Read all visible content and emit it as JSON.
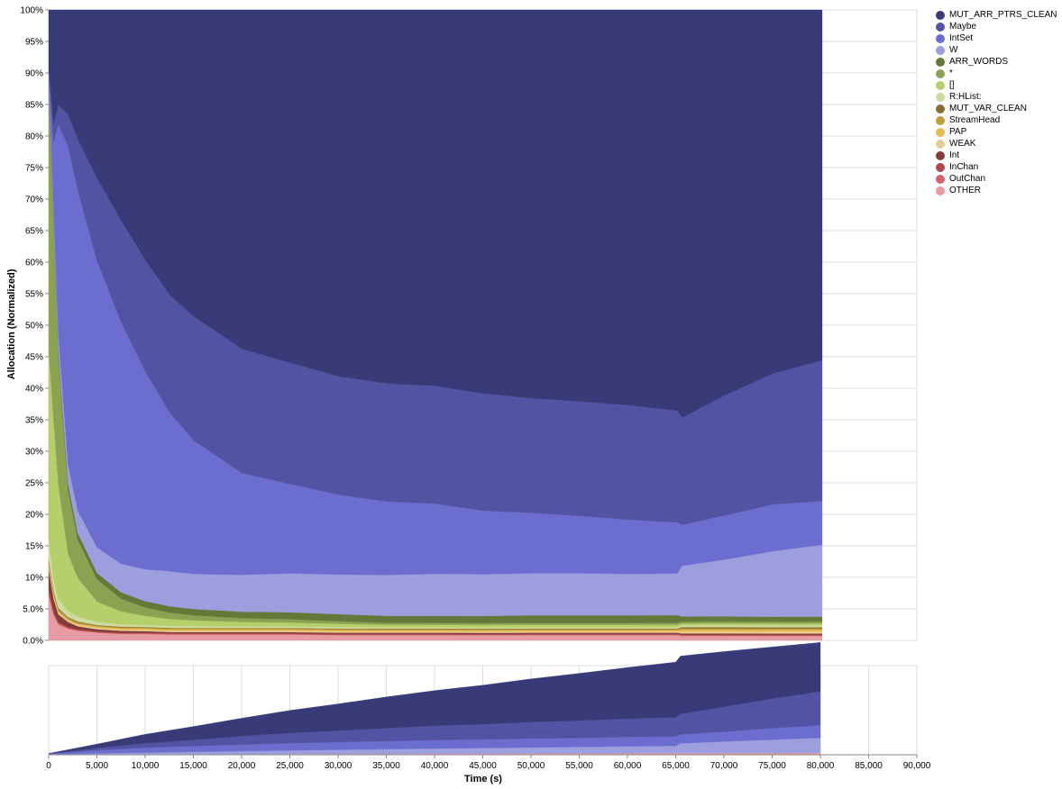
{
  "chart_data": [
    {
      "type": "area",
      "stacked": "normalized",
      "ylabel": "Allocation (Normalized)",
      "ylim": [
        0,
        100
      ],
      "y_ticks": [
        "0.0%",
        "5.0%",
        "10%",
        "15%",
        "20%",
        "25%",
        "30%",
        "35%",
        "40%",
        "45%",
        "50%",
        "55%",
        "60%",
        "65%",
        "70%",
        "75%",
        "80%",
        "85%",
        "90%",
        "95%",
        "100%"
      ],
      "grid": true,
      "legend_position": "right",
      "x": [
        0,
        500,
        1000,
        2000,
        3000,
        5000,
        7500,
        10000,
        12500,
        15000,
        20000,
        25000,
        30000,
        35000,
        40000,
        45000,
        50000,
        55000,
        60000,
        65000,
        65500,
        70000,
        75000,
        80000
      ],
      "boundaries_note_units": "percent",
      "series": [
        {
          "name": "OTHER",
          "color": "#e79ba2",
          "values": [
            7,
            4,
            2.5,
            1.8,
            1.5,
            1.2,
            1.0,
            1.0,
            0.9,
            0.9,
            0.9,
            0.9,
            0.8,
            0.8,
            0.8,
            0.8,
            0.8,
            0.8,
            0.8,
            0.8,
            0.7,
            0.7,
            0.7,
            0.7
          ]
        },
        {
          "name": "OutChan",
          "color": "#d6616b",
          "values": [
            0.6,
            0.3,
            0.2,
            0.15,
            0.1,
            0.1,
            0.1,
            0.1,
            0.1,
            0.1,
            0.1,
            0.1,
            0.1,
            0.1,
            0.1,
            0.1,
            0.1,
            0.1,
            0.1,
            0.1,
            0.1,
            0.1,
            0.1,
            0.1
          ]
        },
        {
          "name": "InChan",
          "color": "#ad494a",
          "values": [
            0.6,
            0.3,
            0.2,
            0.15,
            0.1,
            0.1,
            0.1,
            0.1,
            0.1,
            0.1,
            0.1,
            0.1,
            0.1,
            0.1,
            0.1,
            0.1,
            0.1,
            0.1,
            0.1,
            0.1,
            0.1,
            0.1,
            0.1,
            0.1
          ]
        },
        {
          "name": "Int",
          "color": "#843c39",
          "values": [
            3,
            2,
            1.2,
            0.8,
            0.5,
            0.35,
            0.3,
            0.25,
            0.22,
            0.2,
            0.2,
            0.2,
            0.2,
            0.2,
            0.2,
            0.2,
            0.2,
            0.2,
            0.2,
            0.2,
            0.2,
            0.2,
            0.2,
            0.2
          ]
        },
        {
          "name": "WEAK",
          "color": "#e7cb94",
          "values": [
            0.4,
            0.3,
            0.25,
            0.2,
            0.2,
            0.2,
            0.2,
            0.2,
            0.2,
            0.2,
            0.2,
            0.2,
            0.2,
            0.2,
            0.2,
            0.2,
            0.2,
            0.2,
            0.2,
            0.2,
            0.3,
            0.3,
            0.3,
            0.3
          ]
        },
        {
          "name": "PAP",
          "color": "#e7ba52",
          "values": [
            0.4,
            0.3,
            0.25,
            0.2,
            0.2,
            0.2,
            0.2,
            0.2,
            0.2,
            0.2,
            0.2,
            0.2,
            0.2,
            0.2,
            0.2,
            0.2,
            0.2,
            0.2,
            0.2,
            0.2,
            0.3,
            0.3,
            0.3,
            0.3
          ]
        },
        {
          "name": "StreamHead",
          "color": "#bd9e39",
          "values": [
            0.4,
            0.3,
            0.25,
            0.2,
            0.2,
            0.15,
            0.15,
            0.15,
            0.15,
            0.15,
            0.15,
            0.15,
            0.15,
            0.15,
            0.15,
            0.15,
            0.15,
            0.15,
            0.15,
            0.15,
            0.2,
            0.2,
            0.2,
            0.2
          ]
        },
        {
          "name": "MUT_VAR_CLEAN",
          "color": "#8c6d31",
          "values": [
            0.4,
            0.3,
            0.2,
            0.15,
            0.15,
            0.1,
            0.1,
            0.1,
            0.1,
            0.1,
            0.1,
            0.1,
            0.1,
            0.1,
            0.1,
            0.1,
            0.1,
            0.1,
            0.1,
            0.1,
            0.2,
            0.2,
            0.2,
            0.2
          ]
        },
        {
          "name": "R:HList:",
          "color": "#cedb9c",
          "values": [
            3,
            2,
            1.5,
            1.0,
            0.8,
            0.5,
            0.4,
            0.35,
            0.3,
            0.3,
            0.25,
            0.25,
            0.25,
            0.2,
            0.2,
            0.2,
            0.2,
            0.2,
            0.2,
            0.2,
            0.3,
            0.3,
            0.3,
            0.3
          ]
        },
        {
          "name": "[]",
          "color": "#b5cf6b",
          "values": [
            30,
            25,
            18,
            9,
            6,
            3.2,
            2.0,
            1.4,
            1.1,
            0.9,
            0.7,
            0.6,
            0.5,
            0.4,
            0.4,
            0.4,
            0.4,
            0.4,
            0.4,
            0.4,
            0.3,
            0.3,
            0.3,
            0.3
          ]
        },
        {
          "name": "*",
          "color": "#8ca252",
          "values": [
            40,
            30,
            20,
            10,
            6,
            3.5,
            2.0,
            1.3,
            1.0,
            0.8,
            0.6,
            0.5,
            0.4,
            0.3,
            0.3,
            0.3,
            0.3,
            0.3,
            0.3,
            0.3,
            0.3,
            0.3,
            0.3,
            0.3
          ]
        },
        {
          "name": "ARR_WORDS",
          "color": "#637939",
          "values": [
            1.2,
            1.5,
            1.2,
            1.0,
            1.0,
            1.0,
            1.0,
            1.0,
            1.0,
            1.0,
            1.0,
            1.1,
            1.1,
            1.1,
            1.1,
            1.1,
            1.2,
            1.2,
            1.2,
            1.2,
            0.8,
            0.8,
            0.8,
            0.8
          ]
        },
        {
          "name": "W",
          "color": "#9c9ede",
          "values": [
            1,
            2,
            2.5,
            3,
            3.5,
            4,
            4.5,
            5,
            5.5,
            5.5,
            5.8,
            6.1,
            6.2,
            6.4,
            6.6,
            6.6,
            6.6,
            6.6,
            6.5,
            6.5,
            8.0,
            9.0,
            10.5,
            11.5
          ]
        },
        {
          "name": "IntSet",
          "color": "#6b6ecf",
          "values": [
            1,
            10,
            33,
            50,
            50,
            45,
            38,
            31,
            25,
            21,
            16,
            14,
            12.5,
            11.5,
            11.0,
            10.0,
            9.5,
            9.0,
            8.5,
            8.0,
            6.5,
            7.0,
            7.5,
            7.0
          ]
        },
        {
          "name": "Maybe",
          "color": "#5254a3",
          "values": [
            1,
            3,
            3,
            5,
            8,
            13,
            16,
            17.5,
            18.5,
            19.5,
            19.5,
            19.0,
            18.5,
            18.5,
            18.5,
            18.5,
            18.0,
            18.0,
            18.0,
            17.5,
            17.0,
            19.0,
            21.0,
            22.5
          ]
        },
        {
          "name": "MUT_ARR_PTRS_CLEAN",
          "color": "#393b79",
          "values": [
            9,
            18,
            15,
            16.4,
            20.15,
            26.4,
            33.15,
            39.25,
            44.83,
            48.25,
            53.3,
            55.3,
            57.35,
            58.55,
            59.05,
            60.55,
            61.05,
            61.55,
            62.15,
            62.65,
            64.6,
            60.9,
            58.2,
            56.1
          ]
        }
      ]
    },
    {
      "type": "area",
      "stacked": "zero",
      "xlabel": "Time (s)",
      "xlim": [
        0,
        90000
      ],
      "x_ticks": [
        "0",
        "5,000",
        "10,000",
        "15,000",
        "20,000",
        "25,000",
        "30,000",
        "35,000",
        "40,000",
        "45,000",
        "50,000",
        "55,000",
        "60,000",
        "65,000",
        "70,000",
        "75,000",
        "80,000",
        "85,000",
        "90,000"
      ],
      "grid": true,
      "x": [
        0,
        5000,
        10000,
        15000,
        20000,
        25000,
        30000,
        35000,
        40000,
        45000,
        50000,
        55000,
        60000,
        65000,
        65500,
        70000,
        75000,
        80000
      ],
      "ymax": 100,
      "series": [
        {
          "name": "OTHER",
          "color": "#e79ba2",
          "values": [
            0.3,
            0.5,
            0.6,
            0.7,
            0.8,
            0.9,
            1.0,
            1.1,
            1.2,
            1.3,
            1.4,
            1.5,
            1.6,
            1.7,
            1.7,
            1.8,
            1.9,
            2.0
          ]
        },
        {
          "name": "W",
          "color": "#9c9ede",
          "values": [
            0.2,
            1.0,
            1.8,
            2.5,
            3.2,
            3.9,
            4.6,
            5.2,
            5.8,
            6.3,
            6.8,
            7.3,
            7.8,
            8.2,
            11.0,
            13.0,
            15.0,
            17.0
          ]
        },
        {
          "name": "IntSet",
          "color": "#6b6ecf",
          "values": [
            0.5,
            3.5,
            5.5,
            6.5,
            7.5,
            8.0,
            8.5,
            9.0,
            9.5,
            9.5,
            10.0,
            10.0,
            10.5,
            10.5,
            10.0,
            11.0,
            13.0,
            14.0
          ]
        },
        {
          "name": "Maybe",
          "color": "#5254a3",
          "values": [
            0.3,
            2.5,
            5.0,
            7.0,
            9.5,
            11.5,
            13.0,
            14.5,
            16.0,
            17.0,
            18.5,
            19.5,
            20.5,
            21.5,
            23.0,
            28.0,
            33.0,
            38.0
          ]
        },
        {
          "name": "MUT_ARR_PTRS_CLEAN",
          "color": "#393b79",
          "values": [
            0.2,
            4.5,
            10.0,
            15.0,
            20.0,
            25.5,
            30.0,
            35.0,
            39.5,
            44.0,
            48.5,
            53.0,
            57.5,
            62.0,
            65.0,
            62.0,
            58.0,
            55.0
          ]
        }
      ]
    }
  ]
}
